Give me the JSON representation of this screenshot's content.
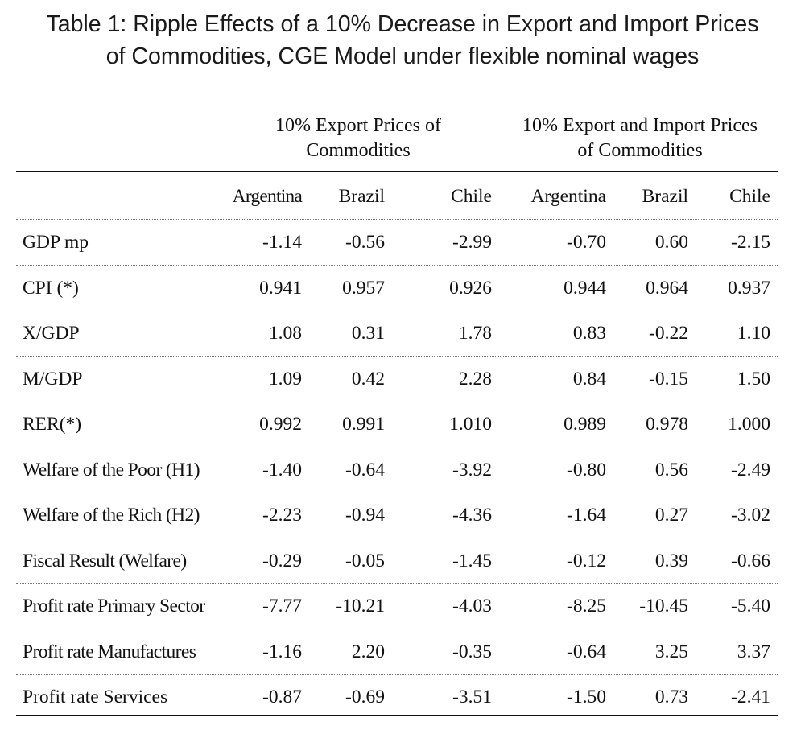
{
  "title_line1": "Table 1: Ripple Effects of a 10% Decrease in Export and Import Prices",
  "title_line2": "of Commodities, CGE Model under flexible nominal wages",
  "groups": [
    {
      "line1": "10% Export Prices of",
      "line2": "Commodities"
    },
    {
      "line1": "10% Export and Import Prices",
      "line2": "of Commodities"
    }
  ],
  "columns": [
    "Argentina",
    "Brazil",
    "Chile",
    "Argentina",
    "Brazil",
    "Chile"
  ],
  "rows": [
    {
      "label": "GDP mp",
      "values": [
        "-1.14",
        "-0.56",
        "-2.99",
        "-0.70",
        "0.60",
        "-2.15"
      ]
    },
    {
      "label": "CPI (*)",
      "values": [
        "0.941",
        "0.957",
        "0.926",
        "0.944",
        "0.964",
        "0.937"
      ]
    },
    {
      "label": "X/GDP",
      "values": [
        "1.08",
        "0.31",
        "1.78",
        "0.83",
        "-0.22",
        "1.10"
      ]
    },
    {
      "label": "M/GDP",
      "values": [
        "1.09",
        "0.42",
        "2.28",
        "0.84",
        "-0.15",
        "1.50"
      ]
    },
    {
      "label": "RER(*)",
      "values": [
        "0.992",
        "0.991",
        "1.010",
        "0.989",
        "0.978",
        "1.000"
      ]
    },
    {
      "label": "Welfare of the Poor (H1)",
      "values": [
        "-1.40",
        "-0.64",
        "-3.92",
        "-0.80",
        "0.56",
        "-2.49"
      ]
    },
    {
      "label": "Welfare of the Rich (H2)",
      "values": [
        "-2.23",
        "-0.94",
        "-4.36",
        "-1.64",
        "0.27",
        "-3.02"
      ]
    },
    {
      "label": "Fiscal Result (Welfare)",
      "values": [
        "-0.29",
        "-0.05",
        "-1.45",
        "-0.12",
        "0.39",
        "-0.66"
      ]
    },
    {
      "label": "Profit rate Primary Sector",
      "values": [
        "-7.77",
        "-10.21",
        "-4.03",
        "-8.25",
        "-10.45",
        "-5.40"
      ]
    },
    {
      "label": "Profit rate Manufactures",
      "values": [
        "-1.16",
        "2.20",
        "-0.35",
        "-0.64",
        "3.25",
        "3.37"
      ]
    },
    {
      "label": "Profit rate Services",
      "values": [
        "-0.87",
        "-0.69",
        "-3.51",
        "-1.50",
        "0.73",
        "-2.41"
      ]
    }
  ]
}
